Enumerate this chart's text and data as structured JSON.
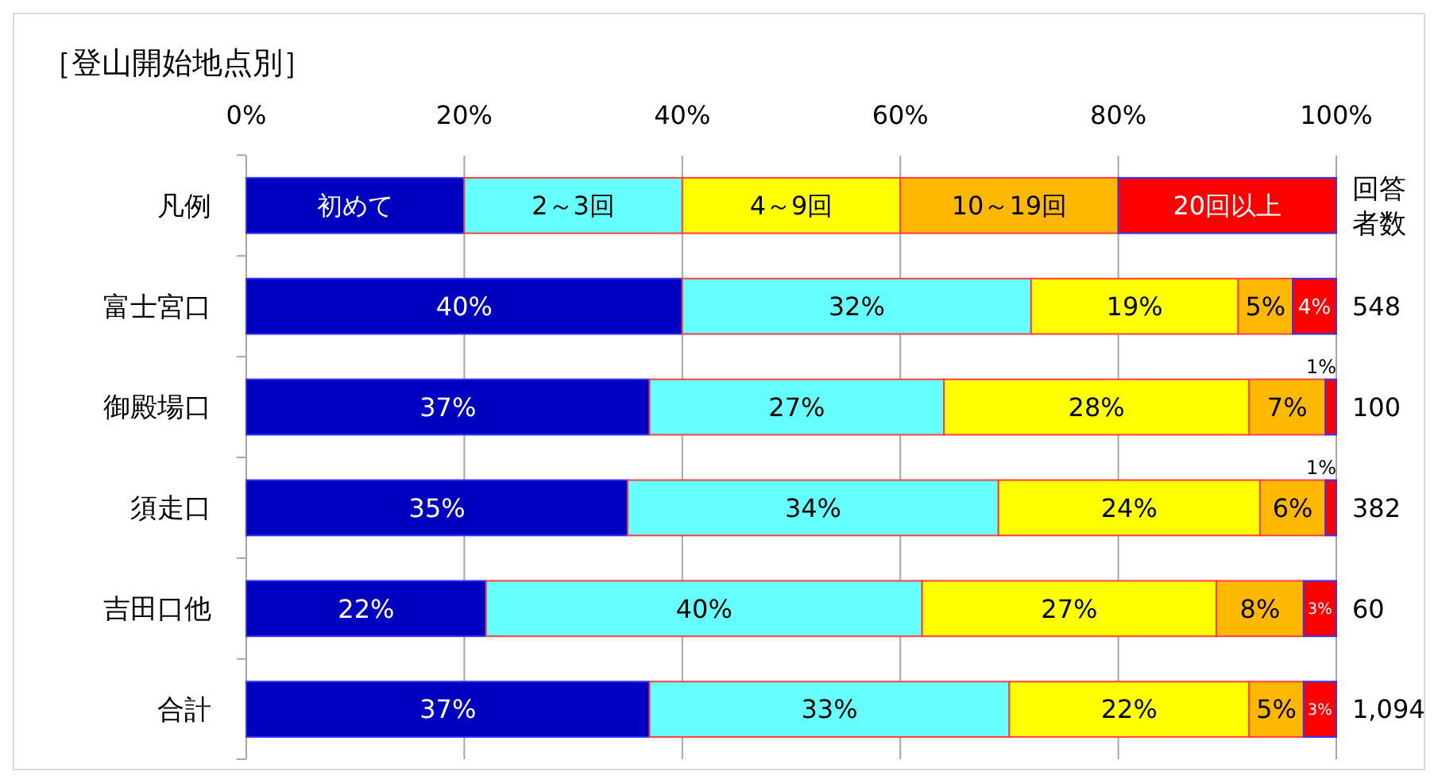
{
  "chart_data": {
    "type": "bar",
    "orientation": "horizontal",
    "stacked": true,
    "title": "［登山開始地点別］",
    "legend_title": "凡例",
    "legend": "top",
    "categories": [
      "富士宮口",
      "御殿場口",
      "須走口",
      "吉田口他",
      "合計"
    ],
    "series": [
      {
        "name": "初めて",
        "color": "#0000c0",
        "values": [
          40,
          37,
          35,
          22,
          37
        ],
        "value_labels": [
          "40%",
          "37%",
          "35%",
          "22%",
          "37%"
        ]
      },
      {
        "name": "2～3回",
        "color": "#66ffff",
        "values": [
          32,
          27,
          34,
          40,
          33
        ],
        "value_labels": [
          "32%",
          "27%",
          "34%",
          "40%",
          "33%"
        ]
      },
      {
        "name": "4～9回",
        "color": "#ffff00",
        "values": [
          19,
          28,
          24,
          27,
          22
        ],
        "value_labels": [
          "19%",
          "28%",
          "24%",
          "27%",
          "22%"
        ]
      },
      {
        "name": "10～19回",
        "color": "#ffb800",
        "values": [
          5,
          7,
          6,
          8,
          5
        ],
        "value_labels": [
          "5%",
          "7%",
          "6%",
          "8%",
          "5%"
        ]
      },
      {
        "name": "20回以上",
        "color": "#ff0000",
        "values": [
          4,
          1,
          1,
          3,
          3
        ],
        "value_labels": [
          "4%",
          "1%",
          "1%",
          "3%",
          "3%"
        ]
      }
    ],
    "xlim": [
      0,
      100
    ],
    "xticks": [
      {
        "value": 0,
        "label": "0%"
      },
      {
        "value": 20,
        "label": "20%"
      },
      {
        "value": 40,
        "label": "40%"
      },
      {
        "value": 60,
        "label": "60%"
      },
      {
        "value": 80,
        "label": "80%"
      },
      {
        "value": 100,
        "label": "100%"
      }
    ],
    "grid": "x",
    "annotations": [
      "回答者数",
      "548",
      "100",
      "382",
      "60",
      "1,094"
    ]
  }
}
